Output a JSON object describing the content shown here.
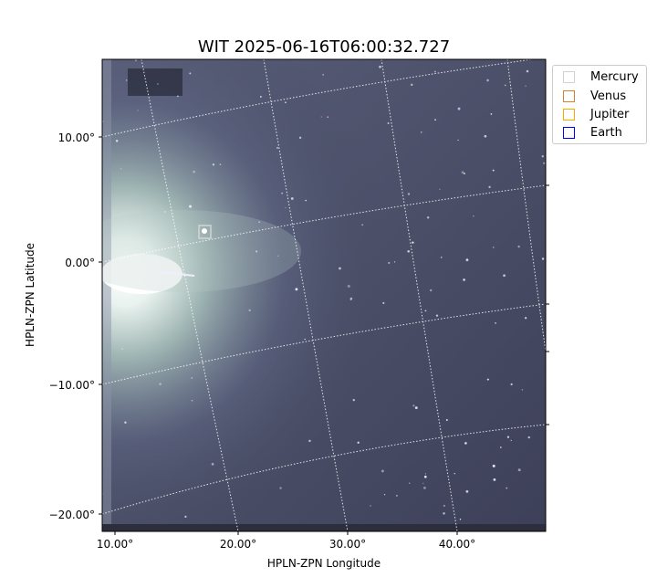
{
  "chart_data": {
    "type": "image",
    "title": "WIT 2025-06-16T06:00:32.727",
    "xlabel": "HPLN-ZPN Longitude",
    "ylabel": "HPLN-ZPN Latitude",
    "xticks": [
      "10.00°",
      "20.00°",
      "30.00°",
      "40.00°"
    ],
    "yticks": [
      "10.00°",
      "0.00°",
      "−10.00°",
      "−20.00°"
    ],
    "grid": true,
    "colormap": "bone-like (dark slate to white)",
    "legend": {
      "placement": "outside-top-right",
      "entries": [
        {
          "name": "Mercury",
          "color": "#d3d3d3"
        },
        {
          "name": "Venus",
          "color": "#d2803a"
        },
        {
          "name": "Jupiter",
          "color": "#ffa500"
        },
        {
          "name": "Earth",
          "color": "#0000ff"
        }
      ]
    },
    "markers": [
      {
        "name": "Mercury",
        "lon": 17.2,
        "lat": 2.5,
        "shape": "square"
      }
    ]
  }
}
